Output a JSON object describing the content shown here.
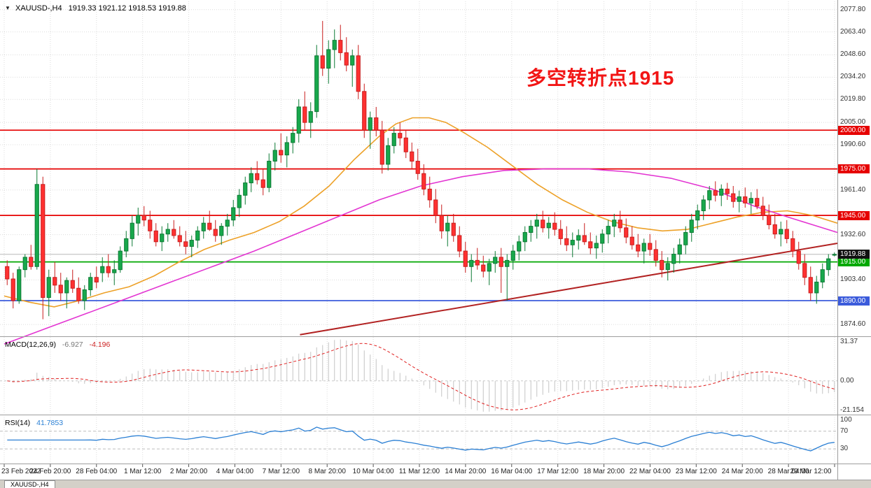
{
  "header": {
    "marker": "▼",
    "symbol_period": "XAUUSD-,H4",
    "ohlc": "1919.33 1921.12 1918.53 1919.88"
  },
  "annotation": {
    "text": "多空转折点1915",
    "color": "#f21515"
  },
  "colors": {
    "up": "#18a84c",
    "up_stroke": "#0d7a35",
    "down": "#ff3131",
    "down_stroke": "#c81e1e",
    "ma_fast": "#eda128",
    "ma_slow": "#e335d2",
    "trend": "#b22222",
    "level_red": "#e60000",
    "level_green": "#00a800",
    "level_blue": "#3b5bdb",
    "grid": "#dcdcdc",
    "current": "#b8b8b8",
    "badge_current": "#111111",
    "macd_bar": "#c4c4c4",
    "macd_signal": "#e02020",
    "rsi": "#2a7fd4"
  },
  "bottom_bar": {
    "tabs": [
      "XAUUSD-,H4"
    ]
  },
  "chart_data": [
    {
      "type": "candlestick",
      "title": "XAUUSD H4",
      "ylim": [
        1867,
        2084
      ],
      "y_ticks": [
        "2077.80",
        "2063.40",
        "2048.60",
        "2034.20",
        "2019.80",
        "2005.00",
        "1990.60",
        "1961.40",
        "1932.60",
        "1903.40",
        "1874.60"
      ],
      "x_labels": [
        "23 Feb 2022",
        "24 Feb 20:00",
        "28 Feb 04:00",
        "1 Mar 12:00",
        "2 Mar 20:00",
        "4 Mar 04:00",
        "7 Mar 12:00",
        "8 Mar 20:00",
        "10 Mar 04:00",
        "11 Mar 12:00",
        "14 Mar 20:00",
        "16 Mar 04:00",
        "17 Mar 12:00",
        "18 Mar 20:00",
        "22 Mar 04:00",
        "23 Mar 12:00",
        "24 Mar 20:00",
        "28 Mar 04:00",
        "29 Mar 12:00"
      ],
      "levels": [
        {
          "price": 2000.0,
          "label": "2000.00",
          "color": "#e60000"
        },
        {
          "price": 1975.0,
          "label": "1975.00",
          "color": "#e60000"
        },
        {
          "price": 1945.0,
          "label": "1945.00",
          "color": "#e60000"
        },
        {
          "price": 1915.0,
          "label": "1915.00",
          "color": "#00a800"
        },
        {
          "price": 1890.0,
          "label": "1890.00",
          "color": "#3b5bdb"
        }
      ],
      "current_price": {
        "value": 1919.88,
        "label": "1919.88"
      },
      "trendline": {
        "x1": 0.355,
        "p1": 1868,
        "x2": 1.0,
        "p2": 1927
      },
      "moving_averages": [
        {
          "name": "ma-fast-orange",
          "color": "#eda128",
          "points": [
            [
              0,
              1893
            ],
            [
              0.03,
              1889
            ],
            [
              0.06,
              1886
            ],
            [
              0.09,
              1890
            ],
            [
              0.12,
              1895
            ],
            [
              0.15,
              1899
            ],
            [
              0.18,
              1906
            ],
            [
              0.21,
              1915
            ],
            [
              0.24,
              1923
            ],
            [
              0.27,
              1929
            ],
            [
              0.3,
              1934
            ],
            [
              0.33,
              1941
            ],
            [
              0.36,
              1951
            ],
            [
              0.39,
              1964
            ],
            [
              0.42,
              1981
            ],
            [
              0.45,
              1996
            ],
            [
              0.47,
              2004
            ],
            [
              0.49,
              2008
            ],
            [
              0.51,
              2008
            ],
            [
              0.53,
              2005
            ],
            [
              0.55,
              1999
            ],
            [
              0.58,
              1989
            ],
            [
              0.61,
              1977
            ],
            [
              0.64,
              1965
            ],
            [
              0.67,
              1955
            ],
            [
              0.7,
              1947
            ],
            [
              0.73,
              1941
            ],
            [
              0.76,
              1937
            ],
            [
              0.79,
              1935
            ],
            [
              0.82,
              1936
            ],
            [
              0.85,
              1940
            ],
            [
              0.88,
              1944
            ],
            [
              0.91,
              1947
            ],
            [
              0.94,
              1948
            ],
            [
              0.97,
              1945
            ],
            [
              1.0,
              1940
            ]
          ]
        },
        {
          "name": "ma-slow-magenta",
          "color": "#e335d2",
          "points": [
            [
              0,
              1862
            ],
            [
              0.05,
              1872
            ],
            [
              0.1,
              1882
            ],
            [
              0.15,
              1892
            ],
            [
              0.2,
              1902
            ],
            [
              0.25,
              1912
            ],
            [
              0.3,
              1922
            ],
            [
              0.35,
              1933
            ],
            [
              0.4,
              1944
            ],
            [
              0.45,
              1955
            ],
            [
              0.5,
              1964
            ],
            [
              0.55,
              1970
            ],
            [
              0.6,
              1974
            ],
            [
              0.65,
              1975
            ],
            [
              0.7,
              1975
            ],
            [
              0.75,
              1973
            ],
            [
              0.8,
              1969
            ],
            [
              0.85,
              1962
            ],
            [
              0.9,
              1951
            ],
            [
              0.94,
              1944
            ],
            [
              0.97,
              1939
            ],
            [
              1.0,
              1934
            ]
          ]
        }
      ],
      "ohlc": [
        [
          1912,
          1916,
          1900,
          1904
        ],
        [
          1904,
          1908,
          1885,
          1890
        ],
        [
          1890,
          1912,
          1888,
          1910
        ],
        [
          1910,
          1920,
          1905,
          1918
        ],
        [
          1918,
          1926,
          1910,
          1912
        ],
        [
          1912,
          1975,
          1910,
          1965
        ],
        [
          1965,
          1970,
          1878,
          1892
        ],
        [
          1892,
          1910,
          1880,
          1905
        ],
        [
          1905,
          1915,
          1895,
          1900
        ],
        [
          1900,
          1908,
          1890,
          1895
        ],
        [
          1895,
          1905,
          1885,
          1903
        ],
        [
          1903,
          1910,
          1895,
          1898
        ],
        [
          1898,
          1905,
          1888,
          1890
        ],
        [
          1890,
          1900,
          1884,
          1897
        ],
        [
          1897,
          1908,
          1893,
          1905
        ],
        [
          1905,
          1912,
          1898,
          1902
        ],
        [
          1908,
          1918,
          1902,
          1912
        ],
        [
          1912,
          1920,
          1905,
          1908
        ],
        [
          1908,
          1916,
          1900,
          1910
        ],
        [
          1910,
          1925,
          1908,
          1922
        ],
        [
          1922,
          1935,
          1918,
          1930
        ],
        [
          1930,
          1945,
          1925,
          1940
        ],
        [
          1940,
          1950,
          1932,
          1945
        ],
        [
          1945,
          1951,
          1938,
          1942
        ],
        [
          1942,
          1948,
          1930,
          1935
        ],
        [
          1935,
          1940,
          1925,
          1928
        ],
        [
          1928,
          1938,
          1922,
          1933
        ],
        [
          1933,
          1940,
          1928,
          1936
        ],
        [
          1936,
          1942,
          1930,
          1932
        ],
        [
          1932,
          1938,
          1925,
          1928
        ],
        [
          1928,
          1935,
          1920,
          1925
        ],
        [
          1925,
          1932,
          1918,
          1929
        ],
        [
          1929,
          1938,
          1924,
          1935
        ],
        [
          1935,
          1944,
          1930,
          1940
        ],
        [
          1940,
          1948,
          1935,
          1936
        ],
        [
          1936,
          1942,
          1928,
          1932
        ],
        [
          1932,
          1940,
          1926,
          1938
        ],
        [
          1938,
          1946,
          1932,
          1942
        ],
        [
          1942,
          1955,
          1938,
          1950
        ],
        [
          1950,
          1962,
          1944,
          1958
        ],
        [
          1958,
          1970,
          1952,
          1966
        ],
        [
          1966,
          1976,
          1960,
          1972
        ],
        [
          1972,
          1980,
          1965,
          1968
        ],
        [
          1968,
          1975,
          1958,
          1963
        ],
        [
          1963,
          1985,
          1960,
          1980
        ],
        [
          1980,
          1992,
          1974,
          1987
        ],
        [
          1987,
          1998,
          1979,
          1984
        ],
        [
          1984,
          1996,
          1976,
          1992
        ],
        [
          1992,
          2002,
          1985,
          1998
        ],
        [
          1998,
          2020,
          1992,
          2015
        ],
        [
          2015,
          2025,
          2000,
          2005
        ],
        [
          2005,
          2018,
          1995,
          2012
        ],
        [
          2012,
          2055,
          2008,
          2048
        ],
        [
          2048,
          2070.5,
          2035,
          2040
        ],
        [
          2040,
          2058,
          2030,
          2052
        ],
        [
          2052,
          2065,
          2040,
          2058
        ],
        [
          2058,
          2068,
          2045,
          2050
        ],
        [
          2050,
          2060,
          2038,
          2042
        ],
        [
          2042,
          2052,
          2028,
          2048
        ],
        [
          2048,
          2055,
          2020,
          2025
        ],
        [
          2025,
          2030,
          1995,
          2000
        ],
        [
          2000,
          2012,
          1988,
          2008
        ],
        [
          2008,
          2015,
          1996,
          2000
        ],
        [
          2000,
          2006,
          1972,
          1978
        ],
        [
          1978,
          1995,
          1974,
          1990
        ],
        [
          1990,
          2002,
          1985,
          1998
        ],
        [
          1998,
          2005,
          1990,
          1995
        ],
        [
          1995,
          2000,
          1982,
          1986
        ],
        [
          1986,
          1992,
          1975,
          1980
        ],
        [
          1980,
          1988,
          1968,
          1972
        ],
        [
          1972,
          1978,
          1958,
          1962
        ],
        [
          1962,
          1970,
          1950,
          1955
        ],
        [
          1955,
          1962,
          1940,
          1945
        ],
        [
          1945,
          1952,
          1930,
          1935
        ],
        [
          1935,
          1945,
          1925,
          1940
        ],
        [
          1940,
          1946,
          1928,
          1932
        ],
        [
          1932,
          1938,
          1918,
          1922
        ],
        [
          1922,
          1928,
          1908,
          1912
        ],
        [
          1912,
          1920,
          1902,
          1916
        ],
        [
          1916,
          1924,
          1910,
          1913
        ],
        [
          1913,
          1919,
          1905,
          1909
        ],
        [
          1909,
          1917,
          1900,
          1914
        ],
        [
          1914,
          1922,
          1908,
          1918
        ],
        [
          1918,
          1924,
          1895,
          1912
        ],
        [
          1912,
          1920,
          1890,
          1916
        ],
        [
          1916,
          1926,
          1910,
          1922
        ],
        [
          1922,
          1932,
          1916,
          1928
        ],
        [
          1928,
          1938,
          1922,
          1934
        ],
        [
          1934,
          1942,
          1928,
          1938
        ],
        [
          1938,
          1946,
          1930,
          1942
        ],
        [
          1942,
          1948,
          1934,
          1937
        ],
        [
          1937,
          1944,
          1930,
          1940
        ],
        [
          1940,
          1947,
          1932,
          1936
        ],
        [
          1936,
          1942,
          1926,
          1930
        ],
        [
          1930,
          1938,
          1922,
          1926
        ],
        [
          1926,
          1934,
          1918,
          1929
        ],
        [
          1929,
          1936,
          1923,
          1932
        ],
        [
          1932,
          1940,
          1926,
          1928
        ],
        [
          1928,
          1934,
          1920,
          1924
        ],
        [
          1924,
          1932,
          1917,
          1927
        ],
        [
          1927,
          1936,
          1921,
          1933
        ],
        [
          1933,
          1942,
          1927,
          1938
        ],
        [
          1938,
          1946,
          1931,
          1942
        ],
        [
          1942,
          1948,
          1934,
          1937
        ],
        [
          1937,
          1943,
          1927,
          1931
        ],
        [
          1931,
          1938,
          1923,
          1926
        ],
        [
          1926,
          1933,
          1918,
          1922
        ],
        [
          1922,
          1930,
          1914,
          1927
        ],
        [
          1927,
          1933,
          1919,
          1923
        ],
        [
          1923,
          1929,
          1912,
          1916
        ],
        [
          1916,
          1922,
          1905,
          1910
        ],
        [
          1910,
          1918,
          1903,
          1914
        ],
        [
          1914,
          1924,
          1908,
          1920
        ],
        [
          1920,
          1930,
          1914,
          1926
        ],
        [
          1926,
          1938,
          1920,
          1934
        ],
        [
          1934,
          1946,
          1928,
          1942
        ],
        [
          1942,
          1952,
          1936,
          1948
        ],
        [
          1948,
          1958,
          1942,
          1955
        ],
        [
          1955,
          1964,
          1949,
          1961
        ],
        [
          1961,
          1967,
          1954,
          1958
        ],
        [
          1958,
          1965,
          1951,
          1962
        ],
        [
          1962,
          1966,
          1955,
          1959
        ],
        [
          1959,
          1964,
          1950,
          1954
        ],
        [
          1954,
          1961,
          1947,
          1957
        ],
        [
          1957,
          1963,
          1950,
          1953
        ],
        [
          1953,
          1960,
          1946,
          1956
        ],
        [
          1956,
          1962,
          1949,
          1951
        ],
        [
          1951,
          1957,
          1942,
          1945
        ],
        [
          1945,
          1952,
          1936,
          1939
        ],
        [
          1939,
          1946,
          1930,
          1933
        ],
        [
          1933,
          1941,
          1925,
          1936
        ],
        [
          1936,
          1942,
          1927,
          1930
        ],
        [
          1930,
          1935,
          1918,
          1922
        ],
        [
          1922,
          1928,
          1910,
          1914
        ],
        [
          1914,
          1920,
          1900,
          1905
        ],
        [
          1905,
          1912,
          1890,
          1895
        ],
        [
          1895,
          1906,
          1888,
          1902
        ],
        [
          1902,
          1914,
          1898,
          1910
        ],
        [
          1910,
          1920,
          1906,
          1917
        ],
        [
          1919.33,
          1921.12,
          1918.53,
          1919.88
        ]
      ]
    },
    {
      "type": "bar",
      "name": "MACD(12,26,9)",
      "value_main": "-6.927",
      "value_signal": "-4.196",
      "params": [
        12,
        26,
        9
      ],
      "note": "histogram = EMA12-EMA26 of closes from chart_data[0]; signal = SMA9 of histogram",
      "ylim": [
        -24.1,
        31.4
      ],
      "y_ticks": [
        "31.37",
        "0.00",
        "-21.154"
      ]
    },
    {
      "type": "line",
      "name": "RSI(14)",
      "value": "41.7853",
      "params": [
        14
      ],
      "note": "computed from closes of chart_data[0]",
      "levels": [
        70,
        30
      ],
      "ylim": [
        -3,
        106
      ],
      "y_ticks": [
        "100",
        "70",
        "30"
      ]
    }
  ]
}
